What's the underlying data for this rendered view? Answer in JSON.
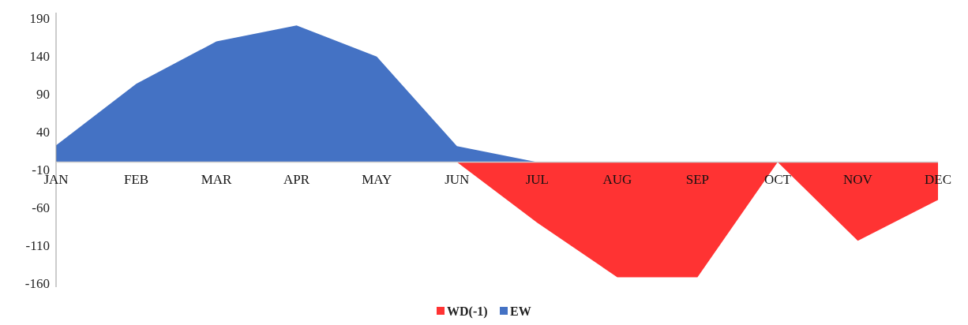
{
  "chart_data": {
    "type": "area",
    "categories": [
      "JAN",
      "FEB",
      "MAR",
      "APR",
      "MAY",
      "JUN",
      "JUL",
      "AUG",
      "SEP",
      "OCT",
      "NOV",
      "DEC"
    ],
    "series": [
      {
        "name": "WD(-1)",
        "color": "#ff3333",
        "values": [
          0,
          0,
          0,
          0,
          0,
          0,
          -80,
          -152,
          -152,
          0,
          -104,
          -50
        ]
      },
      {
        "name": "EW",
        "color": "#4472c4",
        "values": [
          22,
          103,
          159,
          180,
          139,
          21,
          0,
          0,
          0,
          0,
          0,
          0
        ]
      }
    ],
    "ylim": [
      -165,
      197
    ],
    "yticks": [
      -160,
      -110,
      -60,
      -10,
      40,
      90,
      140,
      190
    ],
    "grid": false,
    "legend": "bottom"
  }
}
